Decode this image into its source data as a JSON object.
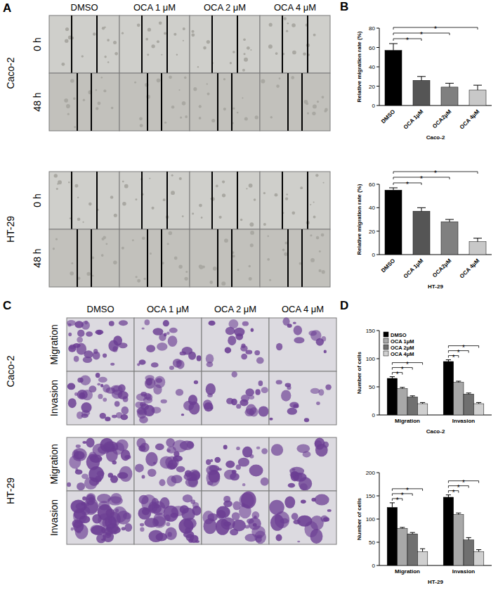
{
  "chart_data": [
    {
      "type": "bar",
      "x_label": "Caco-2",
      "y_label": "Relative migration rate (%)",
      "categories": [
        "DMSO",
        "OCA 1μM",
        "OCA2μM",
        "OCA 4μM"
      ],
      "values": [
        57,
        26,
        19,
        16
      ],
      "errors": [
        7,
        4,
        4,
        5
      ],
      "colors": [
        "#000000",
        "#555555",
        "#808080",
        "#c8c8c8"
      ],
      "ylim": [
        0,
        80
      ],
      "yticks": [
        0,
        20,
        40,
        60,
        80
      ],
      "annotations": [
        {
          "text": "*",
          "from": "DMSO",
          "to": "OCA 1μM"
        },
        {
          "text": "*",
          "from": "DMSO",
          "to": "OCA2μM"
        },
        {
          "text": "*",
          "from": "DMSO",
          "to": "OCA 4μM"
        }
      ]
    },
    {
      "type": "bar",
      "x_label": "HT-29",
      "y_label": "Relative migration rate (%)",
      "categories": [
        "DMSO",
        "OCA 1μM",
        "OCA2μM",
        "OCA 4μM"
      ],
      "values": [
        55,
        37,
        28,
        11
      ],
      "errors": [
        2,
        3,
        2,
        3
      ],
      "colors": [
        "#000000",
        "#555555",
        "#808080",
        "#c8c8c8"
      ],
      "ylim": [
        0,
        60
      ],
      "yticks": [
        0,
        20,
        40,
        60
      ],
      "annotations": [
        {
          "text": "*",
          "from": "DMSO",
          "to": "OCA 1μM"
        },
        {
          "text": "*",
          "from": "DMSO",
          "to": "OCA2μM"
        },
        {
          "text": "*",
          "from": "DMSO",
          "to": "OCA 4μM"
        }
      ]
    },
    {
      "type": "grouped_bar",
      "x_label": "Caco-2",
      "y_label": "Number of cells",
      "categories": [
        "Migration",
        "Invasion"
      ],
      "series": [
        {
          "name": "DMSO",
          "color": "#000000",
          "values": [
            65,
            95
          ],
          "errors": [
            3,
            3
          ]
        },
        {
          "name": "OCA 1μM",
          "color": "#a8a8a8",
          "values": [
            47,
            58
          ],
          "errors": [
            2,
            2
          ]
        },
        {
          "name": "OCA 2μM",
          "color": "#707070",
          "values": [
            32,
            37
          ],
          "errors": [
            2,
            2
          ]
        },
        {
          "name": "OCA 4μM",
          "color": "#d0d0d0",
          "values": [
            20,
            20
          ],
          "errors": [
            2,
            2
          ]
        }
      ],
      "ylim": [
        0,
        150
      ],
      "yticks": [
        0,
        50,
        100,
        150
      ],
      "legend": "upper left",
      "annotations": [
        {
          "text": "*",
          "group": "Migration",
          "from": "DMSO",
          "to": "OCA 1μM"
        },
        {
          "text": "*",
          "group": "Migration",
          "from": "DMSO",
          "to": "OCA 2μM"
        },
        {
          "text": "*",
          "group": "Migration",
          "from": "DMSO",
          "to": "OCA 4μM"
        },
        {
          "text": "*",
          "group": "Invasion",
          "from": "DMSO",
          "to": "OCA 1μM"
        },
        {
          "text": "*",
          "group": "Invasion",
          "from": "DMSO",
          "to": "OCA 2μM"
        },
        {
          "text": "*",
          "group": "Invasion",
          "from": "DMSO",
          "to": "OCA 4μM"
        }
      ]
    },
    {
      "type": "grouped_bar",
      "x_label": "HT-29",
      "y_label": "Number of cells",
      "categories": [
        "Migration",
        "Invasion"
      ],
      "series": [
        {
          "name": "DMSO",
          "color": "#000000",
          "values": [
            125,
            147
          ],
          "errors": [
            10,
            5
          ]
        },
        {
          "name": "OCA 1μM",
          "color": "#a8a8a8",
          "values": [
            80,
            110
          ],
          "errors": [
            2,
            3
          ]
        },
        {
          "name": "OCA 2μM",
          "color": "#707070",
          "values": [
            68,
            55
          ],
          "errors": [
            3,
            5
          ]
        },
        {
          "name": "OCA 4μM",
          "color": "#d0d0d0",
          "values": [
            30,
            30
          ],
          "errors": [
            6,
            4
          ]
        }
      ],
      "ylim": [
        0,
        200
      ],
      "yticks": [
        0,
        50,
        100,
        150,
        200
      ],
      "annotations": [
        {
          "text": "*",
          "group": "Migration",
          "from": "DMSO",
          "to": "OCA 1μM"
        },
        {
          "text": "*",
          "group": "Migration",
          "from": "DMSO",
          "to": "OCA 2μM"
        },
        {
          "text": "*",
          "group": "Migration",
          "from": "DMSO",
          "to": "OCA 4μM"
        },
        {
          "text": "*",
          "group": "Invasion",
          "from": "DMSO",
          "to": "OCA 1μM"
        },
        {
          "text": "*",
          "group": "Invasion",
          "from": "DMSO",
          "to": "OCA 2μM"
        },
        {
          "text": "*",
          "group": "Invasion",
          "from": "DMSO",
          "to": "OCA 4μM"
        }
      ]
    }
  ],
  "figure": {
    "panel_labels": [
      "A",
      "B",
      "C",
      "D"
    ],
    "columns": [
      "DMSO",
      "OCA 1 μM",
      "OCA 2 μM",
      "OCA 4 μM"
    ],
    "wound_healing": {
      "cell_lines": [
        "Caco-2",
        "HT-29"
      ],
      "rows": [
        "0 h",
        "48 h"
      ]
    },
    "transwell": {
      "cell_lines": [
        "Caco-2",
        "HT-29"
      ],
      "rows": [
        "Migration",
        "Invasion"
      ]
    }
  }
}
